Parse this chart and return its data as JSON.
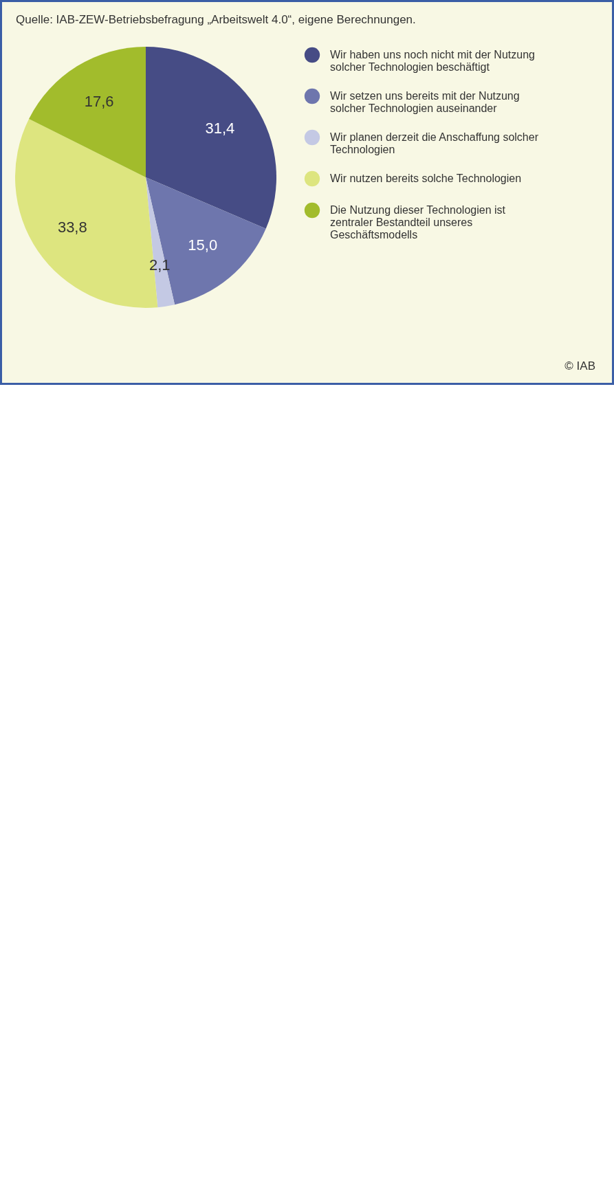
{
  "chart_data": {
    "type": "pie",
    "categories": [
      "Wir haben uns noch nicht mit der Nutzung solcher Technologien beschäftigt",
      "Wir setzen uns bereits mit der Nutzung solcher Technologien auseinander",
      "Wir planen derzeit die Anschaffung solcher Technologien",
      "Wir nutzen bereits solche Technologien",
      "Die Nutzung dieser Technologien ist zentraler Bestandteil unseres Geschäftsmodells"
    ],
    "values": [
      31.4,
      15.0,
      2.1,
      33.8,
      17.6
    ],
    "value_labels": [
      "31,4",
      "15,0",
      "2,1",
      "33,8",
      "17,6"
    ],
    "colors": [
      "#464c85",
      "#6e76ad",
      "#c4c9e4",
      "#dde57f",
      "#a2bc2c"
    ],
    "legend": "right",
    "annotations": [
      "Quelle: IAB-ZEW-Betriebsbefragung „Arbeitswelt 4.0“, eigene Berechnungen.",
      "© IAB"
    ]
  }
}
